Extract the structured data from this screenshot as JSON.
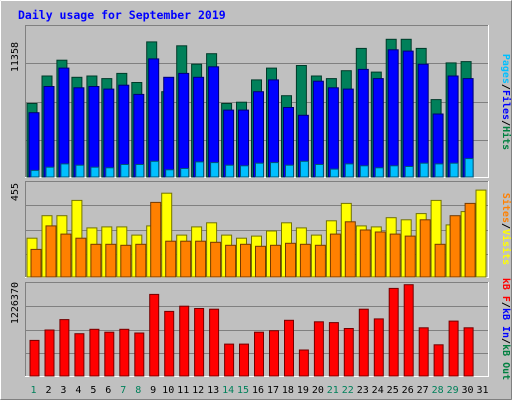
{
  "chart_data": [
    {
      "type": "bar",
      "title": "Daily usage for September 2019",
      "categories": [
        "1",
        "2",
        "3",
        "4",
        "5",
        "6",
        "7",
        "8",
        "9",
        "10",
        "11",
        "12",
        "13",
        "14",
        "15",
        "16",
        "17",
        "18",
        "19",
        "20",
        "21",
        "22",
        "23",
        "24",
        "25",
        "26",
        "27",
        "28",
        "29",
        "30",
        "31"
      ],
      "weekend_days": [
        1,
        7,
        8,
        14,
        15,
        21,
        22,
        28,
        29
      ],
      "ylim": [
        0,
        11358
      ],
      "ytick_label": "11358",
      "right_label": {
        "parts": [
          "Pages",
          "/",
          "Files",
          "/",
          "Hits"
        ],
        "colors": [
          "#00c0ff",
          "#000000",
          "#0000ff",
          "#000000",
          "#008040"
        ]
      },
      "grid": true,
      "series": [
        {
          "name": "Hits",
          "color": "#00805a",
          "values": [
            5600,
            7700,
            8900,
            7600,
            7700,
            7500,
            7900,
            7200,
            10300,
            6500,
            10000,
            8600,
            9400,
            5600,
            5700,
            7400,
            8300,
            6200,
            8500,
            7700,
            7500,
            8100,
            9800,
            8000,
            10500,
            10500,
            9800,
            5900,
            8700,
            8800,
            0
          ]
        },
        {
          "name": "Files",
          "color": "#0000ff",
          "values": [
            4900,
            6900,
            8300,
            6800,
            6900,
            6700,
            7000,
            6300,
            9000,
            7600,
            7900,
            7600,
            8400,
            5100,
            5100,
            6500,
            7400,
            5300,
            4700,
            7300,
            6800,
            6700,
            8200,
            7500,
            9700,
            9600,
            8600,
            4800,
            7700,
            7500,
            0
          ]
        },
        {
          "name": "Pages",
          "color": "#00c0ff",
          "values": [
            500,
            750,
            1000,
            900,
            750,
            700,
            950,
            950,
            1200,
            550,
            650,
            1150,
            1100,
            900,
            850,
            1050,
            1100,
            900,
            1200,
            950,
            600,
            1000,
            850,
            700,
            850,
            800,
            1050,
            1000,
            1050,
            1400,
            0
          ]
        }
      ]
    },
    {
      "type": "bar",
      "title": "",
      "categories": [
        "1",
        "2",
        "3",
        "4",
        "5",
        "6",
        "7",
        "8",
        "9",
        "10",
        "11",
        "12",
        "13",
        "14",
        "15",
        "16",
        "17",
        "18",
        "19",
        "20",
        "21",
        "22",
        "23",
        "24",
        "25",
        "26",
        "27",
        "28",
        "29",
        "30",
        "31"
      ],
      "ylim": [
        0,
        455
      ],
      "ytick_label": "455",
      "right_label": {
        "parts": [
          "Sites",
          "/",
          "Visits"
        ],
        "colors": [
          "#ff8000",
          "#000000",
          "#ffff00"
        ]
      },
      "grid": true,
      "series": [
        {
          "name": "Visits",
          "color": "#ffff00",
          "values": [
            190,
            300,
            300,
            375,
            240,
            245,
            245,
            205,
            250,
            410,
            205,
            245,
            265,
            205,
            190,
            200,
            225,
            265,
            240,
            205,
            275,
            360,
            250,
            245,
            290,
            280,
            310,
            375,
            255,
            320,
            425
          ]
        },
        {
          "name": "Sites",
          "color": "#ff8000",
          "values": [
            135,
            250,
            210,
            190,
            160,
            160,
            155,
            160,
            365,
            175,
            175,
            175,
            170,
            155,
            160,
            150,
            155,
            165,
            160,
            155,
            210,
            270,
            230,
            220,
            210,
            200,
            280,
            160,
            300,
            360,
            0
          ]
        }
      ]
    },
    {
      "type": "bar",
      "title": "",
      "categories": [
        "1",
        "2",
        "3",
        "4",
        "5",
        "6",
        "7",
        "8",
        "9",
        "10",
        "11",
        "12",
        "13",
        "14",
        "15",
        "16",
        "17",
        "18",
        "19",
        "20",
        "21",
        "22",
        "23",
        "24",
        "25",
        "26",
        "27",
        "28",
        "29",
        "30",
        "31"
      ],
      "ylim": [
        0,
        1226370
      ],
      "ytick_label": "1226370",
      "right_label": {
        "parts": [
          "kB F",
          "/",
          "kB In",
          "/",
          "kB Out"
        ],
        "colors": [
          "#ff0000",
          "#000000",
          "#0000ff",
          "#000000",
          "#008040"
        ]
      },
      "grid": true,
      "series": [
        {
          "name": "kB F",
          "color": "#ff0000",
          "values": [
            480000,
            620000,
            760000,
            570000,
            630000,
            590000,
            630000,
            580000,
            1100000,
            870000,
            940000,
            910000,
            900000,
            430000,
            430000,
            590000,
            610000,
            750000,
            350000,
            730000,
            720000,
            640000,
            900000,
            770000,
            1180000,
            1230000,
            650000,
            420000,
            740000,
            650000,
            0
          ]
        }
      ]
    }
  ]
}
